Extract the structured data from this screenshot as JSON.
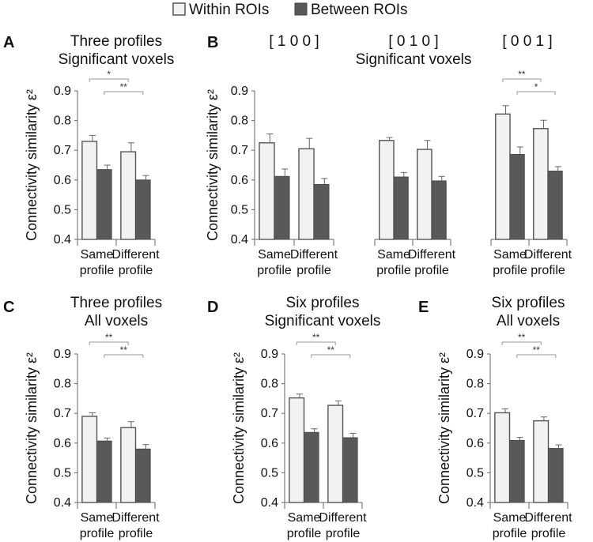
{
  "legend": {
    "within_label": "Within ROIs",
    "between_label": "Between ROIs",
    "within_color": "#f2f2f2",
    "between_color": "#595959"
  },
  "y_axis_label": "Connectivity similarity ε²",
  "chart_data": [
    {
      "id": "A",
      "type": "bar",
      "letter": "A",
      "title": [
        "Three profiles",
        "Significant voxels"
      ],
      "categories": [
        [
          "Same",
          "profile"
        ],
        [
          "Different",
          "profile"
        ]
      ],
      "series": [
        {
          "name": "Within ROIs",
          "values": [
            0.73,
            0.695
          ],
          "errors": [
            0.02,
            0.03
          ]
        },
        {
          "name": "Between ROIs",
          "values": [
            0.635,
            0.6
          ],
          "errors": [
            0.015,
            0.015
          ]
        }
      ],
      "ylim": [
        0.4,
        0.9
      ],
      "yticks": [
        "0.4",
        "0.5",
        "0.6",
        "0.7",
        "0.8",
        "0.9"
      ],
      "significance": [
        {
          "label": "*"
        },
        {
          "label": "**"
        }
      ]
    },
    {
      "id": "B1",
      "type": "bar",
      "letter": "B",
      "title": [
        "[ 1 0 0 ]"
      ],
      "categories": [
        [
          "Same",
          "profile"
        ],
        [
          "Different",
          "profile"
        ]
      ],
      "series": [
        {
          "name": "Within ROIs",
          "values": [
            0.725,
            0.705
          ],
          "errors": [
            0.03,
            0.035
          ]
        },
        {
          "name": "Between ROIs",
          "values": [
            0.612,
            0.585
          ],
          "errors": [
            0.025,
            0.02
          ]
        }
      ],
      "ylim": [
        0.4,
        0.9
      ],
      "yticks": [
        "0.4",
        "0.5",
        "0.6",
        "0.7",
        "0.8",
        "0.9"
      ],
      "significance": []
    },
    {
      "id": "B2",
      "type": "bar",
      "title": [
        "[ 0 1 0 ]",
        "Significant voxels"
      ],
      "categories": [
        [
          "Same",
          "profile"
        ],
        [
          "Different",
          "profile"
        ]
      ],
      "series": [
        {
          "name": "Within ROIs",
          "values": [
            0.733,
            0.703
          ],
          "errors": [
            0.01,
            0.03
          ]
        },
        {
          "name": "Between ROIs",
          "values": [
            0.61,
            0.597
          ],
          "errors": [
            0.015,
            0.015
          ]
        }
      ],
      "ylim": [
        0.4,
        0.9
      ],
      "significance": []
    },
    {
      "id": "B3",
      "type": "bar",
      "title": [
        "[ 0 0 1 ]"
      ],
      "categories": [
        [
          "Same",
          "profile"
        ],
        [
          "Different",
          "profile"
        ]
      ],
      "series": [
        {
          "name": "Within ROIs",
          "values": [
            0.822,
            0.773
          ],
          "errors": [
            0.028,
            0.028
          ]
        },
        {
          "name": "Between ROIs",
          "values": [
            0.686,
            0.63
          ],
          "errors": [
            0.025,
            0.015
          ]
        }
      ],
      "ylim": [
        0.4,
        0.9
      ],
      "significance": [
        {
          "label": "**"
        },
        {
          "label": "*"
        }
      ]
    },
    {
      "id": "C",
      "type": "bar",
      "letter": "C",
      "title": [
        "Three profiles",
        "All voxels"
      ],
      "categories": [
        [
          "Same",
          "profile"
        ],
        [
          "Different",
          "profile"
        ]
      ],
      "series": [
        {
          "name": "Within ROIs",
          "values": [
            0.69,
            0.652
          ],
          "errors": [
            0.012,
            0.02
          ]
        },
        {
          "name": "Between ROIs",
          "values": [
            0.607,
            0.58
          ],
          "errors": [
            0.01,
            0.015
          ]
        }
      ],
      "ylim": [
        0.4,
        0.9
      ],
      "yticks": [
        "0.4",
        "0.5",
        "0.6",
        "0.7",
        "0.8",
        "0.9"
      ],
      "significance": [
        {
          "label": "**"
        },
        {
          "label": "**"
        }
      ]
    },
    {
      "id": "D",
      "type": "bar",
      "letter": "D",
      "title": [
        "Six profiles",
        "Significant voxels"
      ],
      "categories": [
        [
          "Same",
          "profile"
        ],
        [
          "Different",
          "profile"
        ]
      ],
      "series": [
        {
          "name": "Within ROIs",
          "values": [
            0.752,
            0.727
          ],
          "errors": [
            0.013,
            0.015
          ]
        },
        {
          "name": "Between ROIs",
          "values": [
            0.636,
            0.618
          ],
          "errors": [
            0.012,
            0.015
          ]
        }
      ],
      "ylim": [
        0.4,
        0.9
      ],
      "yticks": [
        "0.4",
        "0.5",
        "0.6",
        "0.7",
        "0.8",
        "0.9"
      ],
      "significance": [
        {
          "label": "**"
        },
        {
          "label": "**"
        }
      ]
    },
    {
      "id": "E",
      "type": "bar",
      "letter": "E",
      "title": [
        "Six profiles",
        "All voxels"
      ],
      "categories": [
        [
          "Same",
          "profile"
        ],
        [
          "Different",
          "profile"
        ]
      ],
      "series": [
        {
          "name": "Within ROIs",
          "values": [
            0.702,
            0.675
          ],
          "errors": [
            0.013,
            0.013
          ]
        },
        {
          "name": "Between ROIs",
          "values": [
            0.609,
            0.582
          ],
          "errors": [
            0.01,
            0.012
          ]
        }
      ],
      "ylim": [
        0.4,
        0.9
      ],
      "yticks": [
        "0.4",
        "0.5",
        "0.6",
        "0.7",
        "0.8",
        "0.9"
      ],
      "significance": [
        {
          "label": "**"
        },
        {
          "label": "**"
        }
      ]
    }
  ]
}
